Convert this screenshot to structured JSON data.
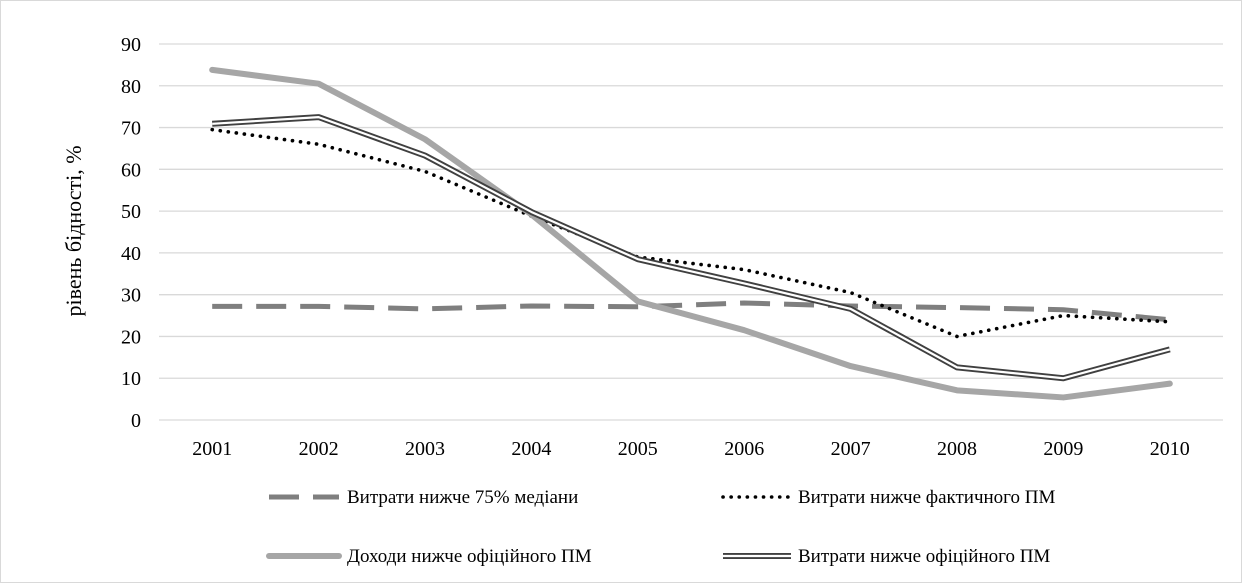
{
  "chart_data": {
    "type": "line",
    "title": "",
    "xlabel": "",
    "ylabel": "рівень бідності, %",
    "x": [
      "2001",
      "2002",
      "2003",
      "2004",
      "2005",
      "2006",
      "2007",
      "2008",
      "2009",
      "2010"
    ],
    "ylim": [
      0,
      90
    ],
    "yticks": [
      0,
      10,
      20,
      30,
      40,
      50,
      60,
      70,
      80,
      90
    ],
    "grid": "horizontal",
    "legend_position": "bottom",
    "series": [
      {
        "name": "Витрати нижче 75% медіани",
        "style": "dashed",
        "color": "#7f7f7f",
        "values": [
          27.2,
          27.2,
          26.6,
          27.3,
          27.1,
          28.0,
          27.3,
          26.9,
          26.4,
          24.0
        ]
      },
      {
        "name": "Витрати нижче фактичного ПМ",
        "style": "dotted",
        "color": "#000000",
        "values": [
          69.5,
          66.0,
          59.5,
          48.8,
          39.0,
          36.0,
          30.5,
          20.0,
          25.0,
          23.5
        ]
      },
      {
        "name": "Доходи нижче офіційного ПМ",
        "style": "solid-thick",
        "color": "#a6a6a6",
        "values": [
          83.8,
          80.5,
          67.2,
          49.2,
          28.4,
          21.5,
          12.9,
          7.1,
          5.4,
          8.7
        ]
      },
      {
        "name": "Витрати нижче офіційного ПМ",
        "style": "double",
        "color": "#404040",
        "values": [
          70.9,
          72.5,
          63.3,
          49.8,
          38.5,
          32.7,
          26.6,
          12.6,
          10.0,
          16.9
        ]
      }
    ]
  }
}
